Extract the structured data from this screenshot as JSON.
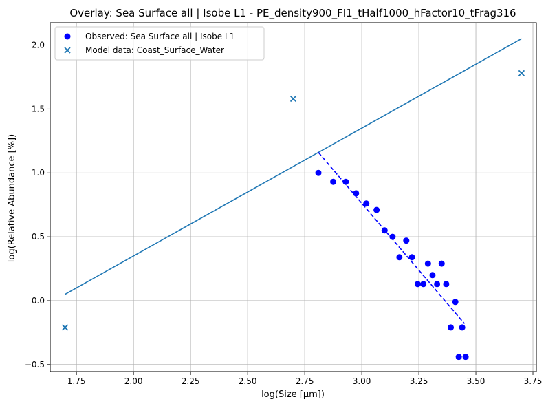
{
  "chart_data": {
    "type": "scatter",
    "title": "Overlay: Sea Surface all | Isobe L1 - PE_density900_FI1_tHalf1000_hFactor10_tFrag316",
    "xlabel": "log(Size [µm])",
    "ylabel": "log(Relative Abundance [%])",
    "xlim": [
      1.635,
      3.765
    ],
    "ylim": [
      -0.555,
      2.175
    ],
    "xticks": [
      1.75,
      2.0,
      2.25,
      2.5,
      2.75,
      3.0,
      3.25,
      3.5,
      3.75
    ],
    "yticks": [
      -0.5,
      0.0,
      0.5,
      1.0,
      1.5,
      2.0
    ],
    "xtick_labels": [
      "1.75",
      "2.00",
      "2.25",
      "2.50",
      "2.75",
      "3.00",
      "3.25",
      "3.50",
      "3.75"
    ],
    "ytick_labels": [
      "−0.5",
      "0.0",
      "0.5",
      "1.0",
      "1.5",
      "2.0"
    ],
    "grid": true,
    "legend_position": "top-left",
    "series": [
      {
        "name": "Observed: Sea Surface all | Isobe L1",
        "kind": "scatter",
        "marker": "circle",
        "color": "#0000ff",
        "x": [
          2.81,
          2.875,
          2.93,
          2.975,
          3.02,
          3.065,
          3.1,
          3.135,
          3.165,
          3.195,
          3.22,
          3.245,
          3.27,
          3.29,
          3.31,
          3.33,
          3.35,
          3.37,
          3.39,
          3.41,
          3.425,
          3.44,
          3.455
        ],
        "y": [
          1.0,
          0.93,
          0.93,
          0.84,
          0.76,
          0.71,
          0.55,
          0.5,
          0.34,
          0.47,
          0.34,
          0.13,
          0.13,
          0.29,
          0.2,
          0.13,
          0.29,
          0.13,
          -0.21,
          -0.01,
          -0.44,
          -0.21,
          -0.44
        ]
      },
      {
        "name": "Model data: Coast_Surface_Water",
        "kind": "scatter",
        "marker": "x",
        "color": "#1f77b4",
        "x": [
          1.7,
          2.7,
          3.7
        ],
        "y": [
          -0.21,
          1.58,
          1.78
        ]
      }
    ],
    "lines": [
      {
        "kind": "solid",
        "color": "#1f77b4",
        "x": [
          1.7,
          3.7
        ],
        "y": [
          0.05,
          2.05
        ]
      },
      {
        "kind": "dashed",
        "color": "#0000ff",
        "x": [
          2.81,
          3.45
        ],
        "y": [
          1.16,
          -0.18
        ]
      }
    ]
  }
}
